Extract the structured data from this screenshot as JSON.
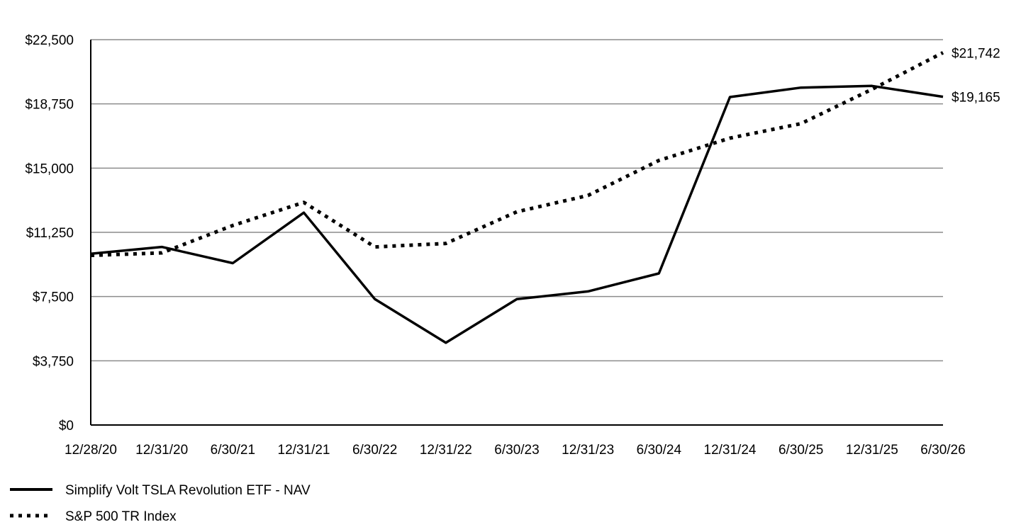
{
  "chart_data": {
    "type": "line",
    "title": "",
    "xlabel": "",
    "ylabel": "",
    "categories": [
      "12/28/20",
      "12/31/20",
      "6/30/21",
      "12/31/21",
      "6/30/22",
      "12/31/22",
      "6/30/23",
      "12/31/23",
      "6/30/24",
      "12/31/24",
      "6/30/25",
      "12/31/25",
      "6/30/26"
    ],
    "y_ticks": [
      "$0",
      "$3,750",
      "$7,500",
      "$11,250",
      "$15,000",
      "$18,750",
      "$22,500"
    ],
    "ylim": [
      0,
      22500
    ],
    "grid": true,
    "legend_position": "bottom-left",
    "series": [
      {
        "name": "Simplify Volt TSLA Revolution ETF - NAV",
        "style": "solid",
        "color": "#000000",
        "values": [
          10000,
          10400,
          9450,
          12400,
          7350,
          4800,
          7350,
          7800,
          8850,
          19150,
          19700,
          19800,
          19165
        ],
        "end_label": "$19,165"
      },
      {
        "name": "S&P 500 TR Index",
        "style": "dotted",
        "color": "#000000",
        "values": [
          9900,
          10050,
          11650,
          13000,
          10400,
          10600,
          12450,
          13400,
          15450,
          16750,
          17600,
          19600,
          21742
        ],
        "end_label": "$21,742"
      }
    ]
  }
}
